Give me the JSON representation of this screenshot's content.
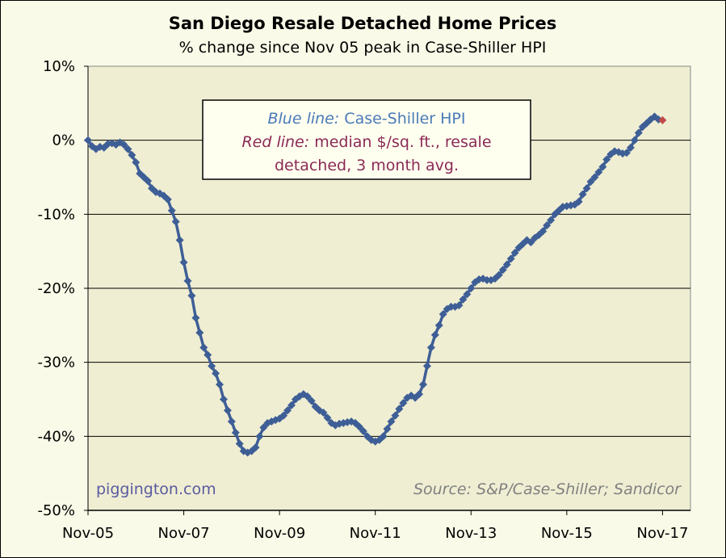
{
  "chart_data": {
    "type": "line",
    "title": "San Diego Resale Detached Home Prices",
    "subtitle": "% change since Nov 05 peak in Case-Shiller HPI",
    "xlabel": "",
    "ylabel": "",
    "x_ticks": [
      "Nov-05",
      "Nov-07",
      "Nov-09",
      "Nov-11",
      "Nov-13",
      "Nov-15",
      "Nov-17"
    ],
    "y_ticks": [
      "10%",
      "0%",
      "-10%",
      "-20%",
      "-30%",
      "-40%",
      "-50%"
    ],
    "ylim": [
      -50,
      10
    ],
    "xlim": [
      "2005-11",
      "2018-06"
    ],
    "grid": "horizontal",
    "colors": {
      "plot_bg": "#efeed3",
      "blue_line": "#3e5e96",
      "red_marker": "#c04a48",
      "gridline": "#000000",
      "legend_blue_text": "#4a7ab8",
      "legend_red_text": "#8a2a55",
      "credit_left": "#5a5aa0",
      "credit_right": "#808080"
    },
    "legend_box": {
      "line1_italic": "Blue line:",
      "line1_rest": " Case-Shiller HPI",
      "line2_italic": "Red line:",
      "line2_rest": " median $/sq. ft., resale",
      "line3": "detached, 3 month avg."
    },
    "credit_left": "piggington.com",
    "credit_right": "Source: S&P/Case-Shiller; Sandicor",
    "series": [
      {
        "name": "Case-Shiller HPI",
        "color": "#3e5e96",
        "points": [
          [
            "2005-11",
            0
          ],
          [
            "2005-12",
            -0.8
          ],
          [
            "2006-01",
            -1.2
          ],
          [
            "2006-02",
            -0.9
          ],
          [
            "2006-03",
            -1.0
          ],
          [
            "2006-04",
            -0.5
          ],
          [
            "2006-05",
            -0.4
          ],
          [
            "2006-06",
            -0.6
          ],
          [
            "2006-07",
            -0.3
          ],
          [
            "2006-08",
            -0.6
          ],
          [
            "2006-09",
            -1.2
          ],
          [
            "2006-10",
            -2.0
          ],
          [
            "2006-11",
            -3.0
          ],
          [
            "2006-12",
            -4.5
          ],
          [
            "2007-01",
            -5.0
          ],
          [
            "2007-02",
            -5.5
          ],
          [
            "2007-03",
            -6.5
          ],
          [
            "2007-04",
            -7.0
          ],
          [
            "2007-05",
            -7.2
          ],
          [
            "2007-06",
            -7.5
          ],
          [
            "2007-07",
            -8.0
          ],
          [
            "2007-08",
            -9.5
          ],
          [
            "2007-09",
            -11.0
          ],
          [
            "2007-10",
            -13.5
          ],
          [
            "2007-11",
            -16.5
          ],
          [
            "2007-12",
            -19.0
          ],
          [
            "2008-01",
            -21.0
          ],
          [
            "2008-02",
            -24.0
          ],
          [
            "2008-03",
            -26.0
          ],
          [
            "2008-04",
            -28.0
          ],
          [
            "2008-05",
            -29.0
          ],
          [
            "2008-06",
            -30.5
          ],
          [
            "2008-07",
            -31.5
          ],
          [
            "2008-08",
            -33.0
          ],
          [
            "2008-09",
            -35.0
          ],
          [
            "2008-10",
            -36.5
          ],
          [
            "2008-11",
            -38.0
          ],
          [
            "2008-12",
            -39.5
          ],
          [
            "2009-01",
            -41.0
          ],
          [
            "2009-02",
            -42.0
          ],
          [
            "2009-03",
            -42.2
          ],
          [
            "2009-04",
            -42.0
          ],
          [
            "2009-05",
            -41.5
          ],
          [
            "2009-06",
            -40.0
          ],
          [
            "2009-07",
            -38.8
          ],
          [
            "2009-08",
            -38.2
          ],
          [
            "2009-09",
            -38.0
          ],
          [
            "2009-10",
            -37.8
          ],
          [
            "2009-11",
            -37.6
          ],
          [
            "2009-12",
            -37.2
          ],
          [
            "2010-01",
            -36.5
          ],
          [
            "2010-02",
            -35.8
          ],
          [
            "2010-03",
            -35.0
          ],
          [
            "2010-04",
            -34.6
          ],
          [
            "2010-05",
            -34.3
          ],
          [
            "2010-06",
            -34.6
          ],
          [
            "2010-07",
            -35.2
          ],
          [
            "2010-08",
            -36.0
          ],
          [
            "2010-09",
            -36.5
          ],
          [
            "2010-10",
            -36.8
          ],
          [
            "2010-11",
            -37.5
          ],
          [
            "2010-12",
            -38.2
          ],
          [
            "2011-01",
            -38.5
          ],
          [
            "2011-02",
            -38.3
          ],
          [
            "2011-03",
            -38.2
          ],
          [
            "2011-04",
            -38.1
          ],
          [
            "2011-05",
            -38.0
          ],
          [
            "2011-06",
            -38.2
          ],
          [
            "2011-07",
            -38.7
          ],
          [
            "2011-08",
            -39.3
          ],
          [
            "2011-09",
            -40.0
          ],
          [
            "2011-10",
            -40.5
          ],
          [
            "2011-11",
            -40.7
          ],
          [
            "2011-12",
            -40.5
          ],
          [
            "2012-01",
            -40.0
          ],
          [
            "2012-02",
            -39.0
          ],
          [
            "2012-03",
            -38.0
          ],
          [
            "2012-04",
            -37.2
          ],
          [
            "2012-05",
            -36.3
          ],
          [
            "2012-06",
            -35.5
          ],
          [
            "2012-07",
            -34.8
          ],
          [
            "2012-08",
            -34.5
          ],
          [
            "2012-09",
            -34.8
          ],
          [
            "2012-10",
            -34.3
          ],
          [
            "2012-11",
            -33.0
          ],
          [
            "2012-12",
            -30.5
          ],
          [
            "2013-01",
            -28.0
          ],
          [
            "2013-02",
            -26.3
          ],
          [
            "2013-03",
            -25.0
          ],
          [
            "2013-04",
            -23.5
          ],
          [
            "2013-05",
            -22.8
          ],
          [
            "2013-06",
            -22.5
          ],
          [
            "2013-07",
            -22.5
          ],
          [
            "2013-08",
            -22.3
          ],
          [
            "2013-09",
            -21.5
          ],
          [
            "2013-10",
            -20.8
          ],
          [
            "2013-11",
            -20.0
          ],
          [
            "2013-12",
            -19.2
          ],
          [
            "2014-01",
            -18.8
          ],
          [
            "2014-02",
            -18.7
          ],
          [
            "2014-03",
            -18.9
          ],
          [
            "2014-04",
            -18.9
          ],
          [
            "2014-05",
            -18.7
          ],
          [
            "2014-06",
            -18.2
          ],
          [
            "2014-07",
            -17.5
          ],
          [
            "2014-08",
            -16.8
          ],
          [
            "2014-09",
            -16.0
          ],
          [
            "2014-10",
            -15.2
          ],
          [
            "2014-11",
            -14.5
          ],
          [
            "2014-12",
            -14.0
          ],
          [
            "2015-01",
            -13.5
          ],
          [
            "2015-02",
            -13.8
          ],
          [
            "2015-03",
            -13.2
          ],
          [
            "2015-04",
            -12.8
          ],
          [
            "2015-05",
            -12.3
          ],
          [
            "2015-06",
            -11.5
          ],
          [
            "2015-07",
            -10.8
          ],
          [
            "2015-08",
            -10.0
          ],
          [
            "2015-09",
            -9.5
          ],
          [
            "2015-10",
            -9.0
          ],
          [
            "2015-11",
            -8.9
          ],
          [
            "2015-12",
            -8.8
          ],
          [
            "2016-01",
            -8.7
          ],
          [
            "2016-02",
            -8.3
          ],
          [
            "2016-03",
            -7.3
          ],
          [
            "2016-04",
            -6.5
          ],
          [
            "2016-05",
            -5.6
          ],
          [
            "2016-06",
            -5.0
          ],
          [
            "2016-07",
            -4.3
          ],
          [
            "2016-08",
            -3.6
          ],
          [
            "2016-09",
            -2.6
          ],
          [
            "2016-10",
            -1.9
          ],
          [
            "2016-11",
            -1.5
          ],
          [
            "2016-12",
            -1.6
          ],
          [
            "2017-01",
            -1.8
          ],
          [
            "2017-02",
            -1.7
          ],
          [
            "2017-03",
            -1.0
          ],
          [
            "2017-04",
            0.0
          ],
          [
            "2017-05",
            1.0
          ],
          [
            "2017-06",
            1.8
          ],
          [
            "2017-07",
            2.3
          ],
          [
            "2017-08",
            2.8
          ],
          [
            "2017-09",
            3.2
          ],
          [
            "2017-10",
            2.8
          ]
        ]
      },
      {
        "name": "median $/sq. ft., resale detached, 3 month avg.",
        "color": "#c04a48",
        "points": [
          [
            "2017-11",
            2.7
          ]
        ]
      }
    ]
  }
}
